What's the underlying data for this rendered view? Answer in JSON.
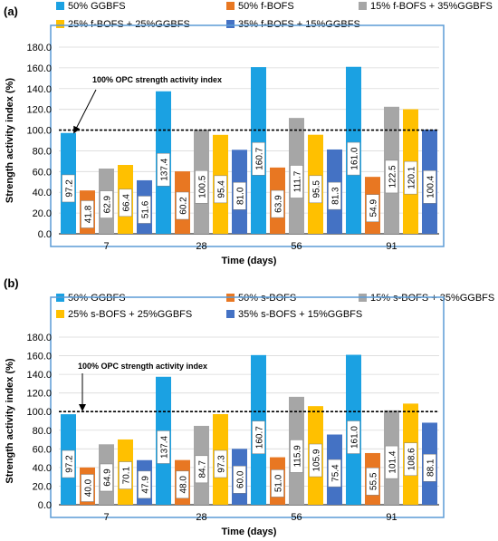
{
  "colors": {
    "series": [
      "#1ba1e2",
      "#e87722",
      "#a6a6a6",
      "#ffc000",
      "#4472c4"
    ],
    "panel_border": "#5b9bd5",
    "grid": "#d9d9d9"
  },
  "chart_data": [
    {
      "type": "bar",
      "panel_label": "(a)",
      "categories": [
        "7",
        "28",
        "56",
        "91"
      ],
      "series": [
        {
          "name": "50% GGBFS",
          "values": [
            97.2,
            137.4,
            160.7,
            161.0
          ]
        },
        {
          "name": "50% f-BOFS",
          "values": [
            41.8,
            60.2,
            63.9,
            54.9
          ]
        },
        {
          "name": "15% f-BOFS + 35%GGBFS",
          "values": [
            62.9,
            100.5,
            111.7,
            122.5
          ]
        },
        {
          "name": "25% f-BOFS + 25%GGBFS",
          "values": [
            66.4,
            95.4,
            95.5,
            120.1
          ]
        },
        {
          "name": "35% f-BOFS + 15%GGBFS",
          "values": [
            51.6,
            81.0,
            81.3,
            100.4
          ]
        }
      ],
      "data_labels": [
        [
          "97.2",
          "137.4",
          "160.7",
          "161.0"
        ],
        [
          "41.8",
          "60.2",
          "63.9",
          "54.9"
        ],
        [
          "62.9",
          "100.5",
          "111.7",
          "122.5"
        ],
        [
          "66.4",
          "95.4",
          "95.5",
          "120.1"
        ],
        [
          "51.6",
          "81.0",
          "81.3",
          "100.4"
        ]
      ],
      "xlabel": "Time (days)",
      "ylabel": "Strength activity index (%)",
      "ylim": [
        0,
        180
      ],
      "yticks": [
        "0.0",
        "20.0",
        "40.0",
        "60.0",
        "80.0",
        "100.0",
        "120.0",
        "140.0",
        "160.0",
        "180.0"
      ],
      "reference_line": {
        "value": 100,
        "label": "100% OPC strength activity index"
      },
      "legend_position": "top",
      "grid": true
    },
    {
      "type": "bar",
      "panel_label": "(b)",
      "categories": [
        "7",
        "28",
        "56",
        "91"
      ],
      "series": [
        {
          "name": "50% GGBFS",
          "values": [
            97.2,
            137.4,
            160.7,
            161.0
          ]
        },
        {
          "name": "50% s-BOFS",
          "values": [
            40.0,
            48.0,
            51.0,
            55.5
          ]
        },
        {
          "name": "15% s-BOFS + 35%GGBFS",
          "values": [
            64.9,
            84.7,
            115.9,
            101.4
          ]
        },
        {
          "name": "25% s-BOFS + 25%GGBFS",
          "values": [
            70.1,
            97.3,
            105.9,
            108.6
          ]
        },
        {
          "name": "35% s-BOFS + 15%GGBFS",
          "values": [
            47.9,
            60.0,
            75.4,
            88.1
          ]
        }
      ],
      "data_labels": [
        [
          "97.2",
          "137.4",
          "160.7",
          "161.0"
        ],
        [
          "40.0",
          "48.0",
          "51.0",
          "55.5"
        ],
        [
          "64.9",
          "84.7",
          "115.9",
          "101.4"
        ],
        [
          "70.1",
          "97.3",
          "105.9",
          "108.6"
        ],
        [
          "47.9",
          "60.0",
          "75.4",
          "88.1"
        ]
      ],
      "xlabel": "Time (days)",
      "ylabel": "Strength activity index (%)",
      "ylim": [
        0,
        180
      ],
      "yticks": [
        "0.0",
        "20.0",
        "40.0",
        "60.0",
        "80.0",
        "100.0",
        "120.0",
        "140.0",
        "160.0",
        "180.0"
      ],
      "reference_line": {
        "value": 100,
        "label": "100% OPC strength activity index"
      },
      "legend_position": "top",
      "grid": true
    }
  ]
}
